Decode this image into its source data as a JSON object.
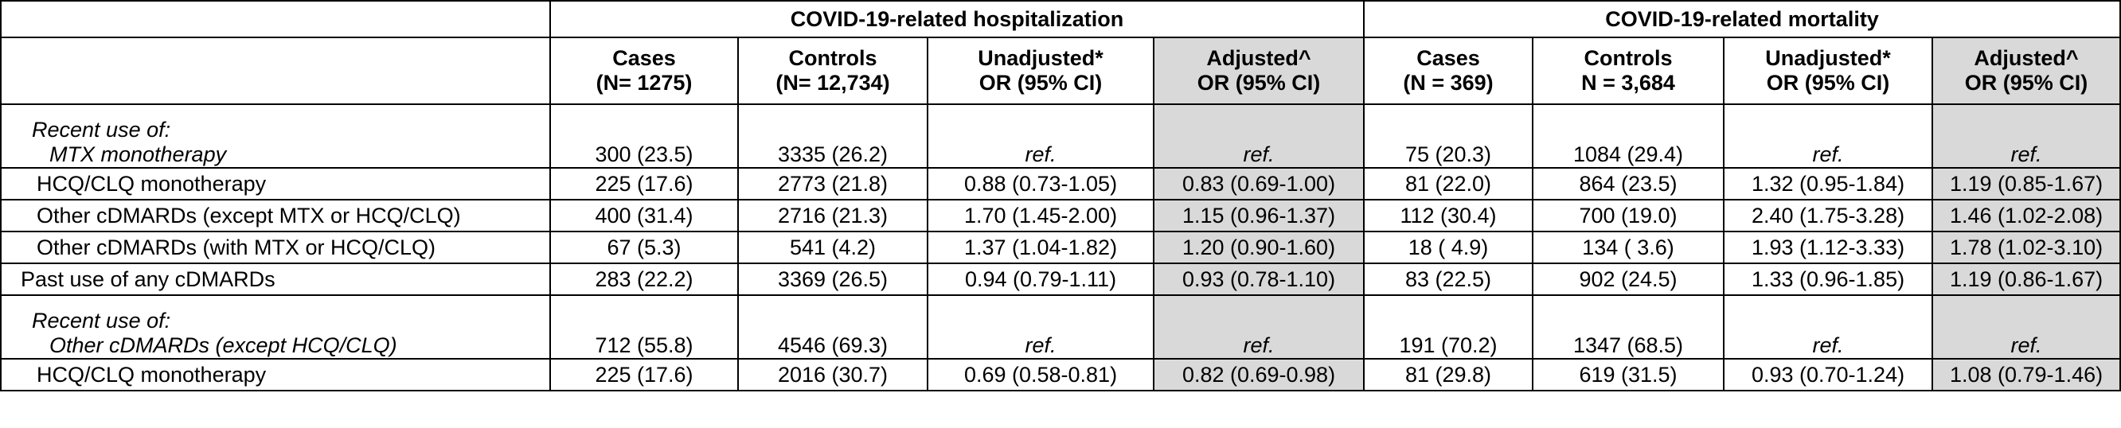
{
  "groups": {
    "hosp": "COVID-19-related hospitalization",
    "mort": "COVID-19-related mortality"
  },
  "headers": {
    "h_cases_1": "Cases",
    "h_cases_2": "(N= 1275)",
    "h_controls_1": "Controls",
    "h_controls_2": "(N= 12,734)",
    "h_unadj_1": "Unadjusted*",
    "h_unadj_2": "OR (95% CI)",
    "h_adj_1": "Adjusted^",
    "h_adj_2": "OR (95% CI)",
    "m_cases_1": "Cases",
    "m_cases_2": "(N = 369)",
    "m_controls_1": "Controls",
    "m_controls_2": "N = 3,684",
    "m_unadj_1": "Unadjusted*",
    "m_unadj_2": "OR (95% CI)",
    "m_adj_1": "Adjusted^",
    "m_adj_2": "OR (95% CI)"
  },
  "rows": [
    {
      "label_a": "Recent use of:",
      "label_b": "MTX monotherapy",
      "v": [
        "300 (23.5)",
        "3335 (26.2)",
        "ref.",
        "ref.",
        "75 (20.3)",
        "1084 (29.4)",
        "ref.",
        "ref."
      ]
    },
    {
      "label": "HCQ/CLQ monotherapy",
      "v": [
        "225 (17.6)",
        "2773 (21.8)",
        "0.88 (0.73-1.05)",
        "0.83 (0.69-1.00)",
        "81 (22.0)",
        "864 (23.5)",
        "1.32 (0.95-1.84)",
        "1.19 (0.85-1.67)"
      ]
    },
    {
      "label": "Other cDMARDs (except MTX or HCQ/CLQ)",
      "v": [
        "400 (31.4)",
        "2716 (21.3)",
        "1.70 (1.45-2.00)",
        "1.15 (0.96-1.37)",
        "112 (30.4)",
        "700 (19.0)",
        "2.40 (1.75-3.28)",
        "1.46 (1.02-2.08)"
      ]
    },
    {
      "label": "Other cDMARDs (with MTX or HCQ/CLQ)",
      "v": [
        "67 (5.3)",
        "541 (4.2)",
        "1.37 (1.04-1.82)",
        "1.20 (0.90-1.60)",
        "18 ( 4.9)",
        "134 ( 3.6)",
        "1.93 (1.12-3.33)",
        "1.78 (1.02-3.10)"
      ]
    },
    {
      "label": "Past use of any cDMARDs",
      "v": [
        "283 (22.2)",
        "3369 (26.5)",
        "0.94 (0.79-1.11)",
        "0.93 (0.78-1.10)",
        "83 (22.5)",
        "902 (24.5)",
        "1.33 (0.96-1.85)",
        "1.19 (0.86-1.67)"
      ]
    },
    {
      "label_a": "Recent use of:",
      "label_b": "Other cDMARDs (except HCQ/CLQ)",
      "v": [
        "712 (55.8)",
        "4546 (69.3)",
        "ref.",
        "ref.",
        "191 (70.2)",
        "1347 (68.5)",
        "ref.",
        "ref."
      ]
    },
    {
      "label": "HCQ/CLQ monotherapy",
      "v": [
        "225 (17.6)",
        "2016 (30.7)",
        "0.69 (0.58-0.81)",
        "0.82 (0.69-0.98)",
        "81 (29.8)",
        "619 (31.5)",
        "0.93 (0.70-1.24)",
        "1.08 (0.79-1.46)"
      ]
    }
  ],
  "colors": {
    "adjusted_fill": "#d9d9d9",
    "border": "#000000"
  }
}
